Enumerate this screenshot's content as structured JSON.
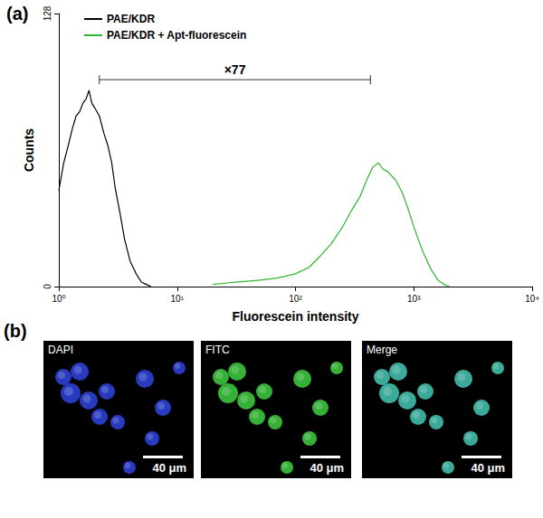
{
  "chart_data": {
    "type": "line",
    "panel_label": "(a)",
    "x_label": "Fluorescein intensity",
    "y_label": "Counts",
    "log": "x",
    "grid": false,
    "legend": "upper left",
    "xlim": [
      1,
      10000
    ],
    "xticks": [
      {
        "value": 1,
        "label": "10⁰"
      },
      {
        "value": 10,
        "label": "10¹"
      },
      {
        "value": 100,
        "label": "10²"
      },
      {
        "value": 1000,
        "label": "10³"
      },
      {
        "value": 10000,
        "label": "10⁴"
      }
    ],
    "ylim": [
      0,
      128
    ],
    "yticks": [
      0,
      128
    ],
    "series": [
      {
        "name": "PAE/KDR",
        "color": "#000000",
        "x": [
          1.0,
          1.1,
          1.2,
          1.3,
          1.4,
          1.5,
          1.6,
          1.7,
          1.8,
          1.9,
          2.0,
          2.2,
          2.4,
          2.6,
          2.8,
          3.0,
          3.3,
          3.6,
          4.0,
          4.5,
          5.0,
          5.5,
          6.0
        ],
        "values": [
          45,
          58,
          66,
          74,
          80,
          82,
          86,
          88,
          92,
          86,
          84,
          80,
          72,
          66,
          58,
          46,
          34,
          22,
          12,
          6,
          2,
          1,
          0
        ]
      },
      {
        "name": "PAE/KDR + Apt-fluorescein",
        "color": "#2fb52f",
        "x": [
          20,
          30,
          50,
          70,
          100,
          130,
          160,
          200,
          250,
          300,
          350,
          400,
          450,
          500,
          550,
          600,
          700,
          800,
          900,
          1000,
          1200,
          1400,
          1600,
          1800,
          2000
        ],
        "values": [
          1,
          2,
          3,
          4,
          6,
          9,
          14,
          20,
          28,
          36,
          42,
          50,
          56,
          58,
          55,
          54,
          50,
          44,
          36,
          28,
          16,
          8,
          3,
          1,
          0
        ]
      }
    ],
    "annotations": [
      {
        "text": "×77",
        "x_from": 2.2,
        "x_to": 430,
        "y": 97
      }
    ]
  },
  "panel_b": {
    "label": "(b)",
    "images": [
      {
        "channel": "DAPI",
        "scale_bar": "40 μm",
        "color": "#2f45e0"
      },
      {
        "channel": "FITC",
        "scale_bar": "40 μm",
        "color": "#3fcf3f"
      },
      {
        "channel": "Merge",
        "scale_bar": "40 μm",
        "color": "#45c8b4"
      }
    ]
  }
}
